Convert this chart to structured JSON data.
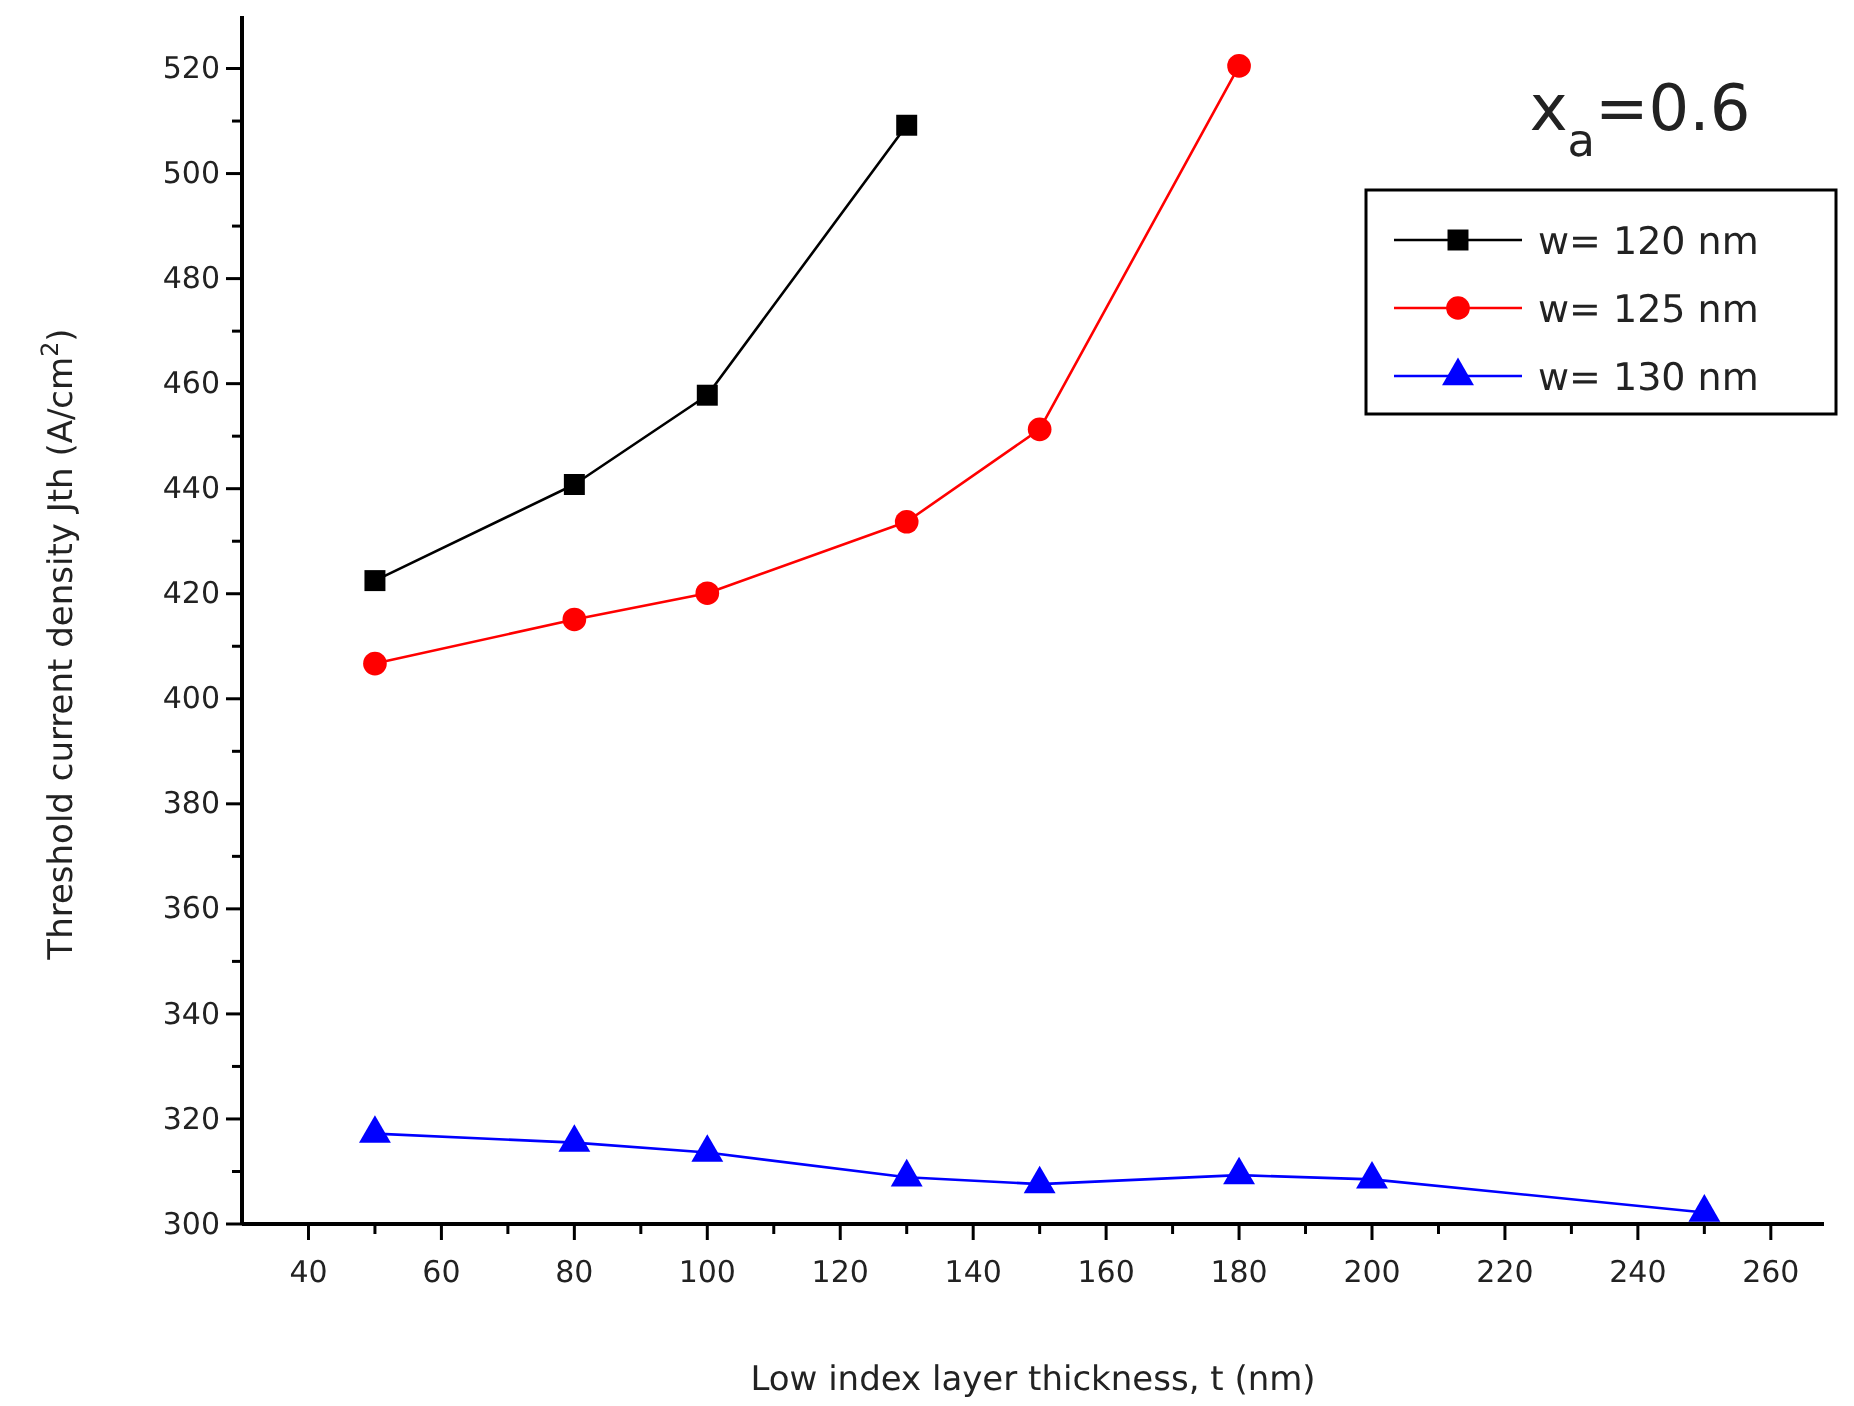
{
  "chart_data": {
    "type": "line",
    "xlabel": "Low index layer thickness, t (nm)",
    "ylabel": "Threshold current density Jth (A/cm$^{2}$)",
    "annotations": [
      "x$_{a}$=0.6"
    ],
    "xlim": [
      30,
      268
    ],
    "xticks": [
      40,
      60,
      80,
      100,
      120,
      140,
      160,
      180,
      200,
      220,
      240,
      260
    ],
    "ylim": [
      300,
      530
    ],
    "yticks": [
      300,
      320,
      340,
      360,
      380,
      400,
      420,
      440,
      460,
      480,
      500,
      520
    ],
    "legend": "top right",
    "line_style": "solid",
    "series": [
      {
        "name": "w= 120 nm",
        "color": "#000000",
        "marker": "square",
        "x": [
          50,
          80,
          100,
          130
        ],
        "values": [
          422.5,
          440.8,
          457.8,
          509.2
        ]
      },
      {
        "name": "w= 125 nm",
        "color": "#ff0000",
        "marker": "circle",
        "x": [
          50,
          80,
          100,
          130,
          150,
          180
        ],
        "values": [
          406.7,
          415.1,
          420.1,
          433.7,
          451.3,
          520.5
        ]
      },
      {
        "name": "w= 130 nm",
        "color": "#0000ff",
        "marker": "triangle",
        "x": [
          50,
          80,
          100,
          130,
          150,
          180,
          200,
          250
        ],
        "values": [
          317.2,
          315.5,
          313.6,
          308.9,
          307.6,
          309.3,
          308.5,
          302.2
        ]
      }
    ]
  }
}
